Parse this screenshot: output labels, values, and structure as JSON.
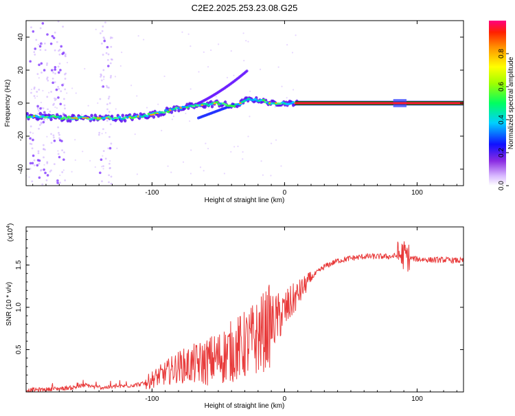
{
  "title": "C2E2.2025.253.23.08.G25",
  "top_panel": {
    "ylabel": "Frequency (Hz)",
    "xlabel": "Height of straight line (km)",
    "xticks": [
      -100,
      0,
      100
    ],
    "yticks": [
      -40,
      -20,
      0,
      20,
      40
    ]
  },
  "bottom_panel": {
    "ylabel": "SNR (10 * v/v)",
    "multiplier": "(x10",
    "multiplier_exp": "4",
    "multiplier_close": ")",
    "xlabel": "Height of straight line (km)",
    "xticks": [
      -100,
      0,
      100
    ],
    "yticks": [
      "0.5",
      "1.0",
      "1.5"
    ]
  },
  "colorbar": {
    "label": "Normalized spectral amplitude",
    "ticks": [
      "0.0",
      "0.2",
      "0.4",
      "0.6",
      "0.8"
    ]
  },
  "colors": {
    "snr_line": "#e83a3a",
    "purple": "#7b2cff",
    "light_purple": "#c9a6ff"
  },
  "chart_data": [
    {
      "type": "heatmap",
      "title": "C2E2.2025.253.23.08.G25",
      "xlabel": "Height of straight line (km)",
      "ylabel": "Frequency (Hz)",
      "xlim": [
        -195,
        135
      ],
      "ylim": [
        -50,
        50
      ],
      "ridge": {
        "x": [
          -195,
          -180,
          -165,
          -150,
          -135,
          -120,
          -110,
          -100,
          -90,
          -80,
          -70,
          -60,
          -50,
          -40,
          -35,
          -30,
          -20,
          -10,
          0,
          10,
          20,
          40,
          60,
          80,
          100,
          120,
          135
        ],
        "y": [
          -8,
          -8,
          -9,
          -9,
          -9,
          -9,
          -8,
          -7,
          -5,
          -3,
          -2,
          -1,
          0,
          -2,
          -1,
          2,
          2,
          0,
          0,
          0,
          0,
          0,
          0,
          0,
          0,
          0,
          0
        ]
      }
    },
    {
      "type": "line",
      "xlabel": "Height of straight line (km)",
      "ylabel": "SNR (10 * v/v)",
      "xlim": [
        -195,
        135
      ],
      "ylim": [
        0,
        1.95
      ],
      "series": [
        {
          "name": "SNR",
          "x": [
            -195,
            -180,
            -160,
            -150,
            -140,
            -120,
            -105,
            -100,
            -90,
            -80,
            -70,
            -60,
            -50,
            -40,
            -30,
            -20,
            -10,
            0,
            10,
            20,
            30,
            40,
            50,
            60,
            70,
            80,
            85,
            90,
            95,
            100,
            110,
            120,
            135
          ],
          "y": [
            0.02,
            0.03,
            0.05,
            0.08,
            0.05,
            0.07,
            0.1,
            0.15,
            0.22,
            0.3,
            0.32,
            0.35,
            0.4,
            0.48,
            0.55,
            0.65,
            0.8,
            0.95,
            1.15,
            1.35,
            1.48,
            1.55,
            1.58,
            1.6,
            1.6,
            1.6,
            1.61,
            1.62,
            1.58,
            1.57,
            1.56,
            1.56,
            1.55
          ]
        }
      ]
    }
  ]
}
